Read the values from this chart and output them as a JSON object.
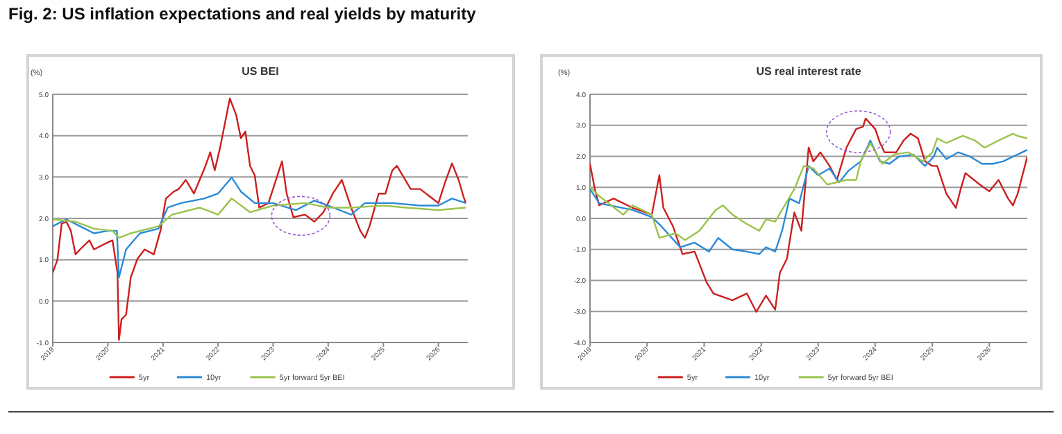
{
  "chart_data": [
    {
      "type": "line",
      "title": "US BEI",
      "ylabel": "(%)",
      "annotations": [
        "Fig. 2: US inflation expectations and real yields by maturity"
      ],
      "legend": "bottom",
      "grid": "y",
      "xlim": [
        "2019-01-01",
        "2026-07-15"
      ],
      "xticks": [
        {
          "value": "2019-01-01",
          "label": "2019"
        },
        {
          "value": "2020-01-01",
          "label": "2020"
        },
        {
          "value": "2021-01-01",
          "label": "2021"
        },
        {
          "value": "2022-01-01",
          "label": "2022"
        },
        {
          "value": "2023-01-01",
          "label": "2023"
        },
        {
          "value": "2024-01-01",
          "label": "2024"
        },
        {
          "value": "2025-01-01",
          "label": "2025"
        },
        {
          "value": "2026-01-01",
          "label": "2026"
        }
      ],
      "ylim": [
        -1,
        5
      ],
      "yticks": [
        {
          "value": -1,
          "label": "-1.0"
        },
        {
          "value": 0,
          "label": "0.0"
        },
        {
          "value": 1,
          "label": "1.0"
        },
        {
          "value": 2,
          "label": "2.0"
        },
        {
          "value": 3,
          "label": "3.0"
        },
        {
          "value": 4,
          "label": "4.0"
        },
        {
          "value": 5,
          "label": "5.0"
        }
      ],
      "series": [
        {
          "name": "5yr",
          "color": "#cc1f1f",
          "x": [
            "2019-01-01",
            "2019-02-01",
            "2019-03-01",
            "2019-04-01",
            "2019-05-01",
            "2019-06-01",
            "2019-07-01",
            "2019-09-01",
            "2019-10-01",
            "2020-01-01",
            "2020-02-01",
            "2020-03-05",
            "2020-03-15",
            "2020-04-01",
            "2020-05-01",
            "2020-06-01",
            "2020-07-15",
            "2020-09-01",
            "2020-11-01",
            "2020-12-15",
            "2021-01-20",
            "2021-03-15",
            "2021-04-15",
            "2021-06-01",
            "2021-07-25",
            "2021-10-10",
            "2021-11-10",
            "2021-12-10",
            "2022-01-15",
            "2022-03-20",
            "2022-05-01",
            "2022-06-01",
            "2022-07-01",
            "2022-08-01",
            "2022-09-01",
            "2022-10-01",
            "2022-12-01",
            "2023-03-01",
            "2023-04-01",
            "2023-05-15",
            "2023-08-01",
            "2023-10-01",
            "2023-12-01",
            "2024-02-01",
            "2024-04-01",
            "2024-06-01",
            "2024-08-01",
            "2024-09-01",
            "2024-10-01",
            "2024-12-01",
            "2025-01-15",
            "2025-03-01",
            "2025-04-01",
            "2025-07-01",
            "2025-09-01",
            "2025-11-01",
            "2026-01-01",
            "2026-02-15",
            "2026-04-01",
            "2026-05-15",
            "2026-06-15",
            "2026-07-01"
          ],
          "values": [
            0.69,
            1.0,
            1.87,
            1.92,
            1.7,
            1.13,
            1.25,
            1.47,
            1.25,
            1.42,
            1.47,
            0.69,
            -0.94,
            -0.44,
            -0.33,
            0.57,
            1.02,
            1.25,
            1.13,
            1.7,
            2.48,
            2.65,
            2.71,
            2.93,
            2.6,
            3.27,
            3.6,
            3.16,
            3.72,
            4.9,
            4.5,
            3.94,
            4.1,
            3.27,
            3.04,
            2.26,
            2.37,
            3.38,
            2.6,
            2.03,
            2.09,
            1.92,
            2.15,
            2.6,
            2.93,
            2.26,
            1.7,
            1.53,
            1.81,
            2.6,
            2.6,
            3.16,
            3.27,
            2.71,
            2.71,
            2.54,
            2.37,
            2.88,
            3.33,
            2.93,
            2.54,
            2.37
          ]
        },
        {
          "name": "10yr",
          "color": "#2a8ad8",
          "x": [
            "2019-01-01",
            "2019-04-01",
            "2019-07-01",
            "2019-10-01",
            "2020-01-01",
            "2020-03-01",
            "2020-03-15",
            "2020-05-01",
            "2020-08-01",
            "2020-12-01",
            "2021-02-01",
            "2021-05-01",
            "2021-10-01",
            "2022-01-01",
            "2022-04-01",
            "2022-06-01",
            "2022-09-01",
            "2023-01-01",
            "2023-06-01",
            "2023-10-01",
            "2024-01-01",
            "2024-06-01",
            "2024-09-01",
            "2025-03-01",
            "2025-09-01",
            "2026-01-01",
            "2026-04-01",
            "2026-07-01"
          ],
          "values": [
            1.81,
            1.98,
            1.81,
            1.64,
            1.7,
            1.7,
            0.57,
            1.25,
            1.64,
            1.75,
            2.26,
            2.37,
            2.48,
            2.6,
            2.99,
            2.65,
            2.37,
            2.37,
            2.2,
            2.43,
            2.31,
            2.09,
            2.37,
            2.37,
            2.31,
            2.31,
            2.48,
            2.37
          ]
        },
        {
          "name": "5yr forward 5yr BEI",
          "color": "#9bc34c",
          "x": [
            "2019-01-01",
            "2019-06-01",
            "2019-10-01",
            "2020-02-01",
            "2020-03-15",
            "2020-06-01",
            "2020-12-01",
            "2021-03-01",
            "2021-09-01",
            "2022-01-01",
            "2022-04-01",
            "2022-08-01",
            "2023-01-01",
            "2023-08-01",
            "2024-01-01",
            "2024-06-01",
            "2025-01-01",
            "2025-06-01",
            "2026-01-01",
            "2026-07-01"
          ],
          "values": [
            1.98,
            1.92,
            1.75,
            1.7,
            1.53,
            1.64,
            1.81,
            2.09,
            2.26,
            2.09,
            2.48,
            2.15,
            2.31,
            2.37,
            2.26,
            2.26,
            2.31,
            2.26,
            2.2,
            2.26
          ]
        }
      ]
    },
    {
      "type": "line",
      "title": "US real interest rate",
      "ylabel": "(%)",
      "legend": "bottom",
      "grid": "y",
      "xlim": [
        "2019-01-01",
        "2026-09-01"
      ],
      "xticks": [
        {
          "value": "2019-01-01",
          "label": "2019"
        },
        {
          "value": "2020-01-01",
          "label": "2020"
        },
        {
          "value": "2021-01-01",
          "label": "2021"
        },
        {
          "value": "2022-01-01",
          "label": "2022"
        },
        {
          "value": "2023-01-01",
          "label": "2023"
        },
        {
          "value": "2024-01-01",
          "label": "2024"
        },
        {
          "value": "2025-01-01",
          "label": "2025"
        },
        {
          "value": "2026-01-01",
          "label": "2026"
        }
      ],
      "ylim": [
        -4,
        4
      ],
      "yticks": [
        {
          "value": -4,
          "label": "-4.0"
        },
        {
          "value": -3,
          "label": "-3.0"
        },
        {
          "value": -2,
          "label": "-2.0"
        },
        {
          "value": -1,
          "label": "-1.0"
        },
        {
          "value": 0,
          "label": "0.0"
        },
        {
          "value": 1,
          "label": "1.0"
        },
        {
          "value": 2,
          "label": "2.0"
        },
        {
          "value": 3,
          "label": "3.0"
        },
        {
          "value": 4,
          "label": "4.0"
        }
      ],
      "series": [
        {
          "name": "5yr",
          "color": "#cc1f1f",
          "x": [
            "2019-01-01",
            "2019-02-01",
            "2019-03-01",
            "2019-06-01",
            "2019-10-01",
            "2020-02-01",
            "2020-03-20",
            "2020-04-15",
            "2020-06-15",
            "2020-08-15",
            "2020-11-01",
            "2021-01-15",
            "2021-03-01",
            "2021-07-01",
            "2021-10-01",
            "2021-12-01",
            "2022-02-01",
            "2022-04-01",
            "2022-05-01",
            "2022-06-15",
            "2022-08-01",
            "2022-09-15",
            "2022-11-01",
            "2022-12-01",
            "2023-01-15",
            "2023-03-15",
            "2023-05-01",
            "2023-07-01",
            "2023-09-01",
            "2023-10-15",
            "2023-11-01",
            "2024-01-01",
            "2024-02-01",
            "2024-03-01",
            "2024-05-15",
            "2024-07-01",
            "2024-08-15",
            "2024-10-01",
            "2024-11-15",
            "2025-01-01",
            "2025-02-01",
            "2025-04-01",
            "2025-06-01",
            "2025-07-01",
            "2025-08-01",
            "2025-11-01",
            "2026-01-01",
            "2026-03-01",
            "2026-05-01",
            "2026-06-01",
            "2026-07-01",
            "2026-09-01"
          ],
          "values": [
            1.76,
            0.94,
            0.42,
            0.64,
            0.34,
            0.12,
            1.39,
            0.34,
            -0.25,
            -1.15,
            -1.07,
            -2.04,
            -2.42,
            -2.64,
            -2.42,
            -3.01,
            -2.49,
            -2.94,
            -1.75,
            -1.3,
            0.19,
            -0.4,
            2.28,
            1.84,
            2.13,
            1.69,
            1.24,
            2.28,
            2.88,
            2.96,
            3.22,
            2.88,
            2.43,
            2.13,
            2.13,
            2.51,
            2.73,
            2.58,
            1.84,
            1.69,
            1.69,
            0.79,
            0.34,
            0.94,
            1.46,
            1.09,
            0.87,
            1.24,
            0.64,
            0.42,
            0.79,
            1.99
          ]
        },
        {
          "name": "10yr",
          "color": "#2a8ad8",
          "x": [
            "2019-01-01",
            "2019-03-01",
            "2019-10-01",
            "2020-02-01",
            "2020-04-01",
            "2020-08-01",
            "2020-11-01",
            "2021-02-01",
            "2021-04-01",
            "2021-07-01",
            "2021-10-01",
            "2021-12-20",
            "2022-02-01",
            "2022-04-01",
            "2022-05-15",
            "2022-07-01",
            "2022-09-01",
            "2022-11-01",
            "2023-01-01",
            "2023-03-15",
            "2023-05-15",
            "2023-07-15",
            "2023-10-01",
            "2023-12-01",
            "2024-02-01",
            "2024-04-01",
            "2024-06-01",
            "2024-09-01",
            "2024-11-15",
            "2025-01-10",
            "2025-02-01",
            "2025-04-01",
            "2025-06-15",
            "2025-09-01",
            "2025-11-15",
            "2026-01-25",
            "2026-04-01",
            "2026-06-01",
            "2026-07-01",
            "2026-09-01"
          ],
          "values": [
            0.94,
            0.49,
            0.27,
            0.04,
            -0.25,
            -0.93,
            -0.78,
            -1.07,
            -0.63,
            -1.0,
            -1.07,
            -1.15,
            -0.93,
            -1.07,
            -0.4,
            0.64,
            0.49,
            1.69,
            1.39,
            1.61,
            1.16,
            1.54,
            1.84,
            2.51,
            1.84,
            1.76,
            1.99,
            2.06,
            1.69,
            1.99,
            2.28,
            1.91,
            2.13,
            1.99,
            1.76,
            1.76,
            1.84,
            1.99,
            2.06,
            2.21
          ]
        },
        {
          "name": "5yr forward 5yr BEI",
          "color": "#9bc34c",
          "x": [
            "2019-01-01",
            "2019-03-01",
            "2019-08-01",
            "2019-10-01",
            "2020-02-01",
            "2020-03-20",
            "2020-07-01",
            "2020-09-01",
            "2020-12-01",
            "2021-03-15",
            "2021-05-01",
            "2021-07-01",
            "2021-10-01",
            "2021-12-20",
            "2022-02-01",
            "2022-04-01",
            "2022-06-01",
            "2022-08-01",
            "2022-10-01",
            "2022-12-01",
            "2023-03-01",
            "2023-07-01",
            "2023-09-01",
            "2023-10-01",
            "2023-12-01",
            "2024-02-15",
            "2024-05-01",
            "2024-08-01",
            "2024-11-01",
            "2025-01-01",
            "2025-02-01",
            "2025-04-01",
            "2025-07-15",
            "2025-10-01",
            "2025-12-01",
            "2026-03-01",
            "2026-06-01",
            "2026-07-01",
            "2026-09-01"
          ],
          "values": [
            1.01,
            0.72,
            0.12,
            0.42,
            0.12,
            -0.63,
            -0.48,
            -0.7,
            -0.4,
            0.27,
            0.42,
            0.12,
            -0.18,
            -0.4,
            -0.03,
            -0.1,
            0.42,
            0.94,
            1.69,
            1.61,
            1.09,
            1.24,
            1.24,
            1.84,
            2.43,
            1.76,
            2.06,
            2.13,
            1.84,
            2.13,
            2.58,
            2.43,
            2.66,
            2.51,
            2.28,
            2.51,
            2.73,
            2.66,
            2.58
          ]
        }
      ]
    }
  ]
}
